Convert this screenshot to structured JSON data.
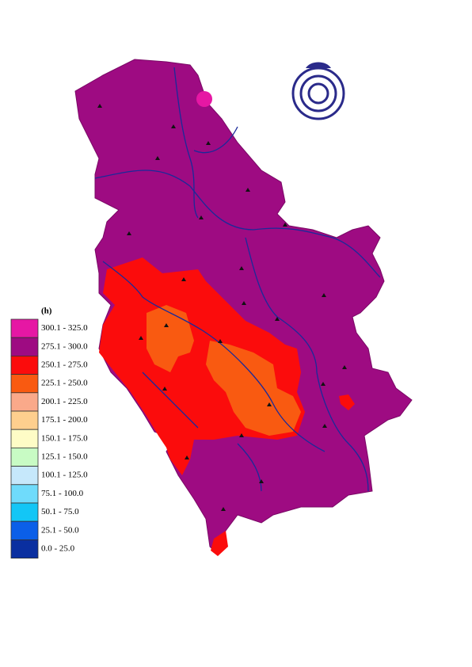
{
  "legend": {
    "title": "(h)",
    "items": [
      {
        "label": "300.1 - 325.0",
        "color": "#e617a4"
      },
      {
        "label": "275.1 - 300.0",
        "color": "#9e0b82"
      },
      {
        "label": "250.1 - 275.0",
        "color": "#fb0c0c"
      },
      {
        "label": "225.1 - 250.0",
        "color": "#f95a11"
      },
      {
        "label": "200.1 - 225.0",
        "color": "#faa98a"
      },
      {
        "label": "175.1 - 200.0",
        "color": "#fecf8e"
      },
      {
        "label": "150.1 - 175.0",
        "color": "#fefcc6"
      },
      {
        "label": "125.1 - 150.0",
        "color": "#c8fbc4"
      },
      {
        "label": "100.1 - 125.0",
        "color": "#c6e8fb"
      },
      {
        "label": "75.1 - 100.0",
        "color": "#6fdbfb"
      },
      {
        "label": "50.1 - 75.0",
        "color": "#13c6f6"
      },
      {
        "label": "25.1 - 50.0",
        "color": "#0b5fe8"
      },
      {
        "label": "0.0 - 25.0",
        "color": "#0a2fa0"
      }
    ]
  }
}
